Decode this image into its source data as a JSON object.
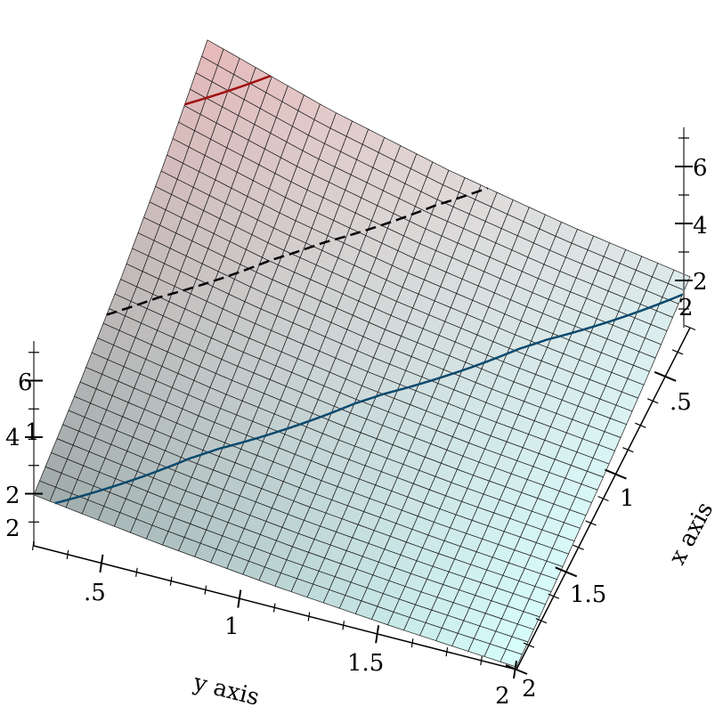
{
  "chart_data": {
    "type": "surface3d",
    "title": "",
    "xlabel": "x axis",
    "ylabel": "y axis",
    "zlabel": "",
    "x": [
      0.25,
      0.6875,
      1.125,
      1.5625,
      2
    ],
    "y": [
      0.25,
      0.6875,
      1.125,
      1.5625,
      2
    ],
    "z": [
      [
        7.0,
        5.66,
        4.58,
        3.71,
        3.0
      ],
      [
        5.66,
        4.58,
        3.71,
        3.0,
        2.43
      ],
      [
        4.58,
        3.71,
        3.0,
        2.43,
        1.96
      ],
      [
        3.71,
        3.0,
        2.43,
        1.96,
        1.59
      ],
      [
        3.0,
        2.43,
        1.96,
        1.59,
        1.29
      ]
    ],
    "xlim": [
      0.25,
      2
    ],
    "ylim": [
      0.25,
      2
    ],
    "zlim": [
      0,
      7
    ],
    "x_ticks": [
      ".5",
      "1",
      "1.5",
      "2"
    ],
    "y_ticks": [
      ".5",
      "1",
      "1.5",
      "2"
    ],
    "z_ticks": [
      "2",
      "4",
      "6"
    ],
    "stray_labels": {
      "left_x_end": "2",
      "left_y_end": "1",
      "right_x_end": "2"
    },
    "contours": [
      {
        "level": 2.9,
        "style": "solid",
        "color": "#0b4a6e"
      },
      {
        "level": 4.3,
        "style": "dashed",
        "color": "#000000"
      },
      {
        "level": 6.3,
        "style": "solid",
        "color": "#a01010"
      }
    ],
    "colors": {
      "low": "#d8ffff",
      "high": "#e6b8b8"
    }
  }
}
